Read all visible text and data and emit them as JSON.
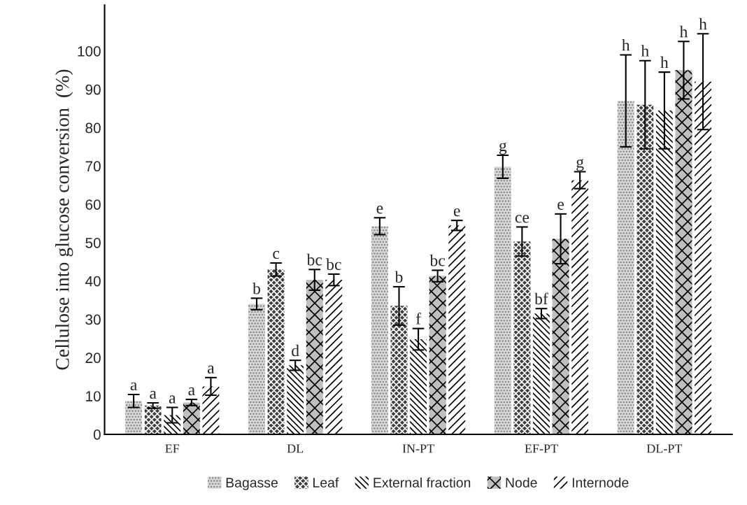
{
  "chart_data": {
    "type": "bar",
    "ylabel": "Cellulose into glucose conversion  (%)",
    "categories": [
      "EF",
      "DL",
      "IN-PT",
      "EF-PT",
      "DL-PT"
    ],
    "series": [
      {
        "name": "Bagasse",
        "color": "#d9d9d9",
        "values": [
          8.7,
          34,
          54.3,
          69.8,
          87
        ],
        "errors": [
          1.7,
          1.5,
          2.2,
          3,
          12
        ],
        "value_labels": [
          "a",
          "b",
          "e",
          "g",
          "h"
        ]
      },
      {
        "name": "Leaf",
        "color": "#404040",
        "values": [
          7.5,
          43,
          33.5,
          50.3,
          86
        ],
        "errors": [
          0.7,
          1.7,
          5,
          3.8,
          11.5
        ],
        "value_labels": [
          "a",
          "c",
          "b",
          "ce",
          "h"
        ]
      },
      {
        "name": "External fraction",
        "color": "#ffffff",
        "values": [
          5,
          18,
          24.8,
          31.5,
          84.5
        ],
        "errors": [
          2,
          1.3,
          2.8,
          1.3,
          10
        ],
        "value_labels": [
          "a",
          "d",
          "f",
          "bf",
          "h"
        ]
      },
      {
        "name": "Node",
        "color": "#bfbfbf",
        "values": [
          8.3,
          40.3,
          41.3,
          51,
          95
        ],
        "errors": [
          0.8,
          2.7,
          1.5,
          6.5,
          7.5
        ],
        "value_labels": [
          "a",
          "bc",
          "bc",
          "e",
          "h"
        ]
      },
      {
        "name": "Internode",
        "color": "#ffffff",
        "values": [
          12.5,
          40.3,
          54.5,
          66.3,
          92
        ],
        "errors": [
          2.3,
          1.5,
          1.3,
          2.2,
          12.5
        ],
        "value_labels": [
          "a",
          "bc",
          "e",
          "g",
          "h"
        ]
      }
    ],
    "ylim": [
      0,
      112
    ],
    "yticks": [
      0,
      10,
      20,
      30,
      40,
      50,
      60,
      70,
      80,
      90,
      100
    ],
    "grid": false,
    "legend": "bottom"
  }
}
